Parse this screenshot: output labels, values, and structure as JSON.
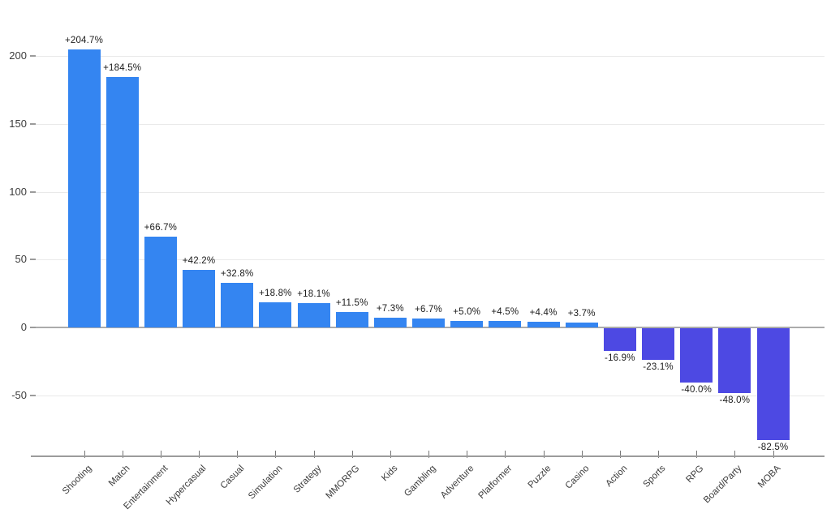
{
  "chart_data": {
    "type": "bar",
    "title": "",
    "xlabel": "",
    "ylabel": "",
    "categories": [
      "Shooting",
      "Match",
      "Entertainment",
      "Hypercasual",
      "Casual",
      "Simulation",
      "Strategy",
      "MMORPG",
      "Kids",
      "Gambling",
      "Adventure",
      "Platformer",
      "Puzzle",
      "Casino",
      "Action",
      "Sports",
      "RPG",
      "Board/Party",
      "MOBA"
    ],
    "values": [
      204.7,
      184.5,
      66.7,
      42.2,
      32.8,
      18.8,
      18.1,
      11.5,
      7.3,
      6.7,
      5.0,
      4.5,
      4.4,
      3.7,
      -16.9,
      -23.1,
      -40.0,
      -48.0,
      -82.5
    ],
    "bar_labels": [
      "+204.7%",
      "+184.5%",
      "+66.7%",
      "+42.2%",
      "+32.8%",
      "+18.8%",
      "+18.1%",
      "+11.5%",
      "+7.3%",
      "+6.7%",
      "+5.0%",
      "+4.5%",
      "+4.4%",
      "+3.7%",
      "-16.9%",
      "-23.1%",
      "-40.0%",
      "-48.0%",
      "-82.5%"
    ],
    "yticks": [
      200,
      150,
      100,
      50,
      0,
      -50
    ],
    "ytick_labels": [
      "200",
      "150",
      "100",
      "50",
      "0",
      "-50"
    ],
    "ylim": [
      -94,
      220
    ],
    "grid": true,
    "legend": null,
    "x_label_rotation_deg": 45,
    "colors": {
      "positive_bar": "#3485F1",
      "negative_bar": "#4D49E3",
      "gridline": "#E9E9E9",
      "zero_line": "#ABABAB",
      "axis_line": "#9B9B9B",
      "tick_mark": "#777777",
      "bar_label_text": "#1B1B1B",
      "axis_tick_text": "#3D3D3D",
      "background": "#FFFFFF"
    }
  }
}
